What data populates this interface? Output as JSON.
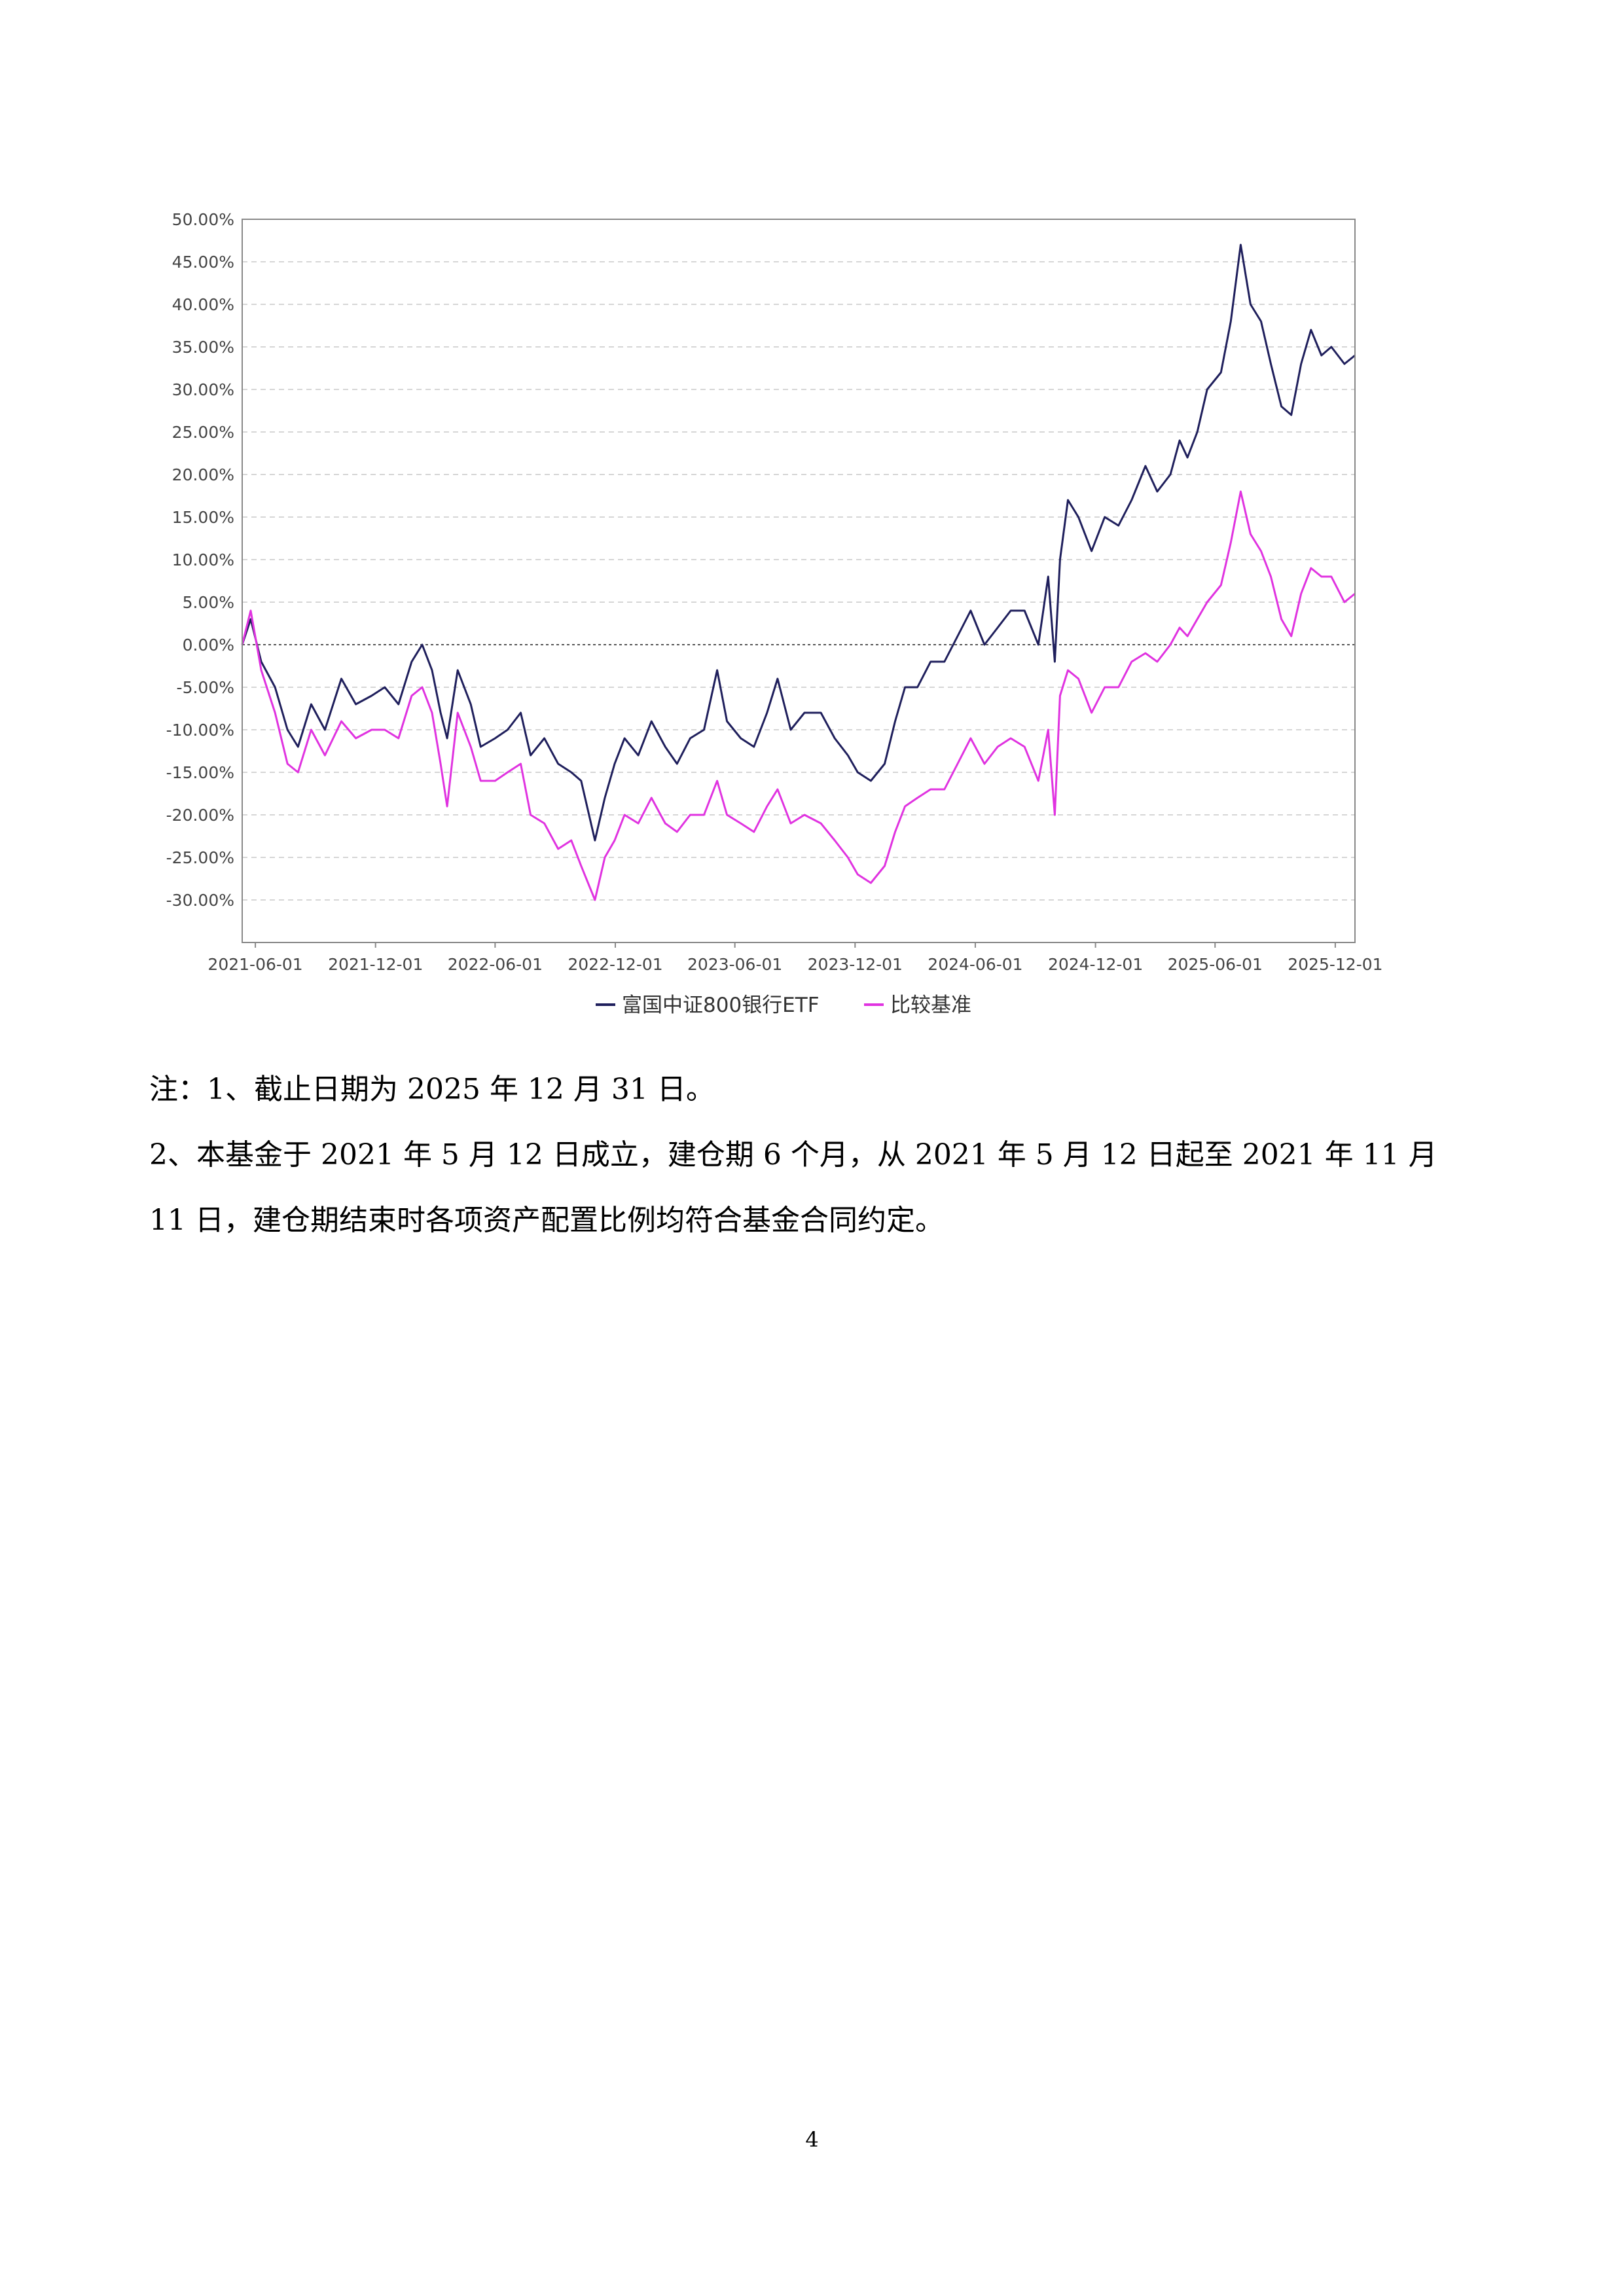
{
  "chart_data": {
    "type": "line",
    "x_ticks": [
      "2021-06-01",
      "2021-12-01",
      "2022-06-01",
      "2022-12-01",
      "2023-06-01",
      "2023-12-01",
      "2024-06-01",
      "2024-12-01",
      "2025-06-01",
      "2025-12-01"
    ],
    "y_ticks": [
      "50.00%",
      "45.00%",
      "40.00%",
      "35.00%",
      "30.00%",
      "25.00%",
      "20.00%",
      "15.00%",
      "10.00%",
      "5.00%",
      "0.00%",
      "-5.00%",
      "-10.00%",
      "-15.00%",
      "-20.00%",
      "-25.00%",
      "-30.00%"
    ],
    "ylim": [
      -35,
      50
    ],
    "xlim": [
      "2021-05-12",
      "2025-12-31"
    ],
    "y_unit": "%",
    "grid": "horizontal dashed",
    "legend_position": "bottom-center",
    "series": [
      {
        "name": "富国中证800银行ETF",
        "color": "#1f1f5c",
        "points": [
          [
            "2021-05-12",
            0
          ],
          [
            "2021-05-25",
            3
          ],
          [
            "2021-06-10",
            -2
          ],
          [
            "2021-07-01",
            -5
          ],
          [
            "2021-07-20",
            -10
          ],
          [
            "2021-08-05",
            -12
          ],
          [
            "2021-08-25",
            -7
          ],
          [
            "2021-09-15",
            -10
          ],
          [
            "2021-10-10",
            -4
          ],
          [
            "2021-11-01",
            -7
          ],
          [
            "2021-11-25",
            -6
          ],
          [
            "2021-12-15",
            -5
          ],
          [
            "2022-01-05",
            -7
          ],
          [
            "2022-01-25",
            -2
          ],
          [
            "2022-02-10",
            0
          ],
          [
            "2022-02-25",
            -3
          ],
          [
            "2022-03-10",
            -8
          ],
          [
            "2022-03-20",
            -11
          ],
          [
            "2022-04-05",
            -3
          ],
          [
            "2022-04-25",
            -7
          ],
          [
            "2022-05-10",
            -12
          ],
          [
            "2022-06-01",
            -11
          ],
          [
            "2022-06-20",
            -10
          ],
          [
            "2022-07-10",
            -8
          ],
          [
            "2022-07-25",
            -13
          ],
          [
            "2022-08-15",
            -11
          ],
          [
            "2022-09-05",
            -14
          ],
          [
            "2022-09-25",
            -15
          ],
          [
            "2022-10-10",
            -16
          ],
          [
            "2022-10-31",
            -23
          ],
          [
            "2022-11-15",
            -18
          ],
          [
            "2022-11-30",
            -14
          ],
          [
            "2022-12-15",
            -11
          ],
          [
            "2023-01-05",
            -13
          ],
          [
            "2023-01-25",
            -9
          ],
          [
            "2023-02-15",
            -12
          ],
          [
            "2023-03-05",
            -14
          ],
          [
            "2023-03-25",
            -11
          ],
          [
            "2023-04-15",
            -10
          ],
          [
            "2023-05-05",
            -3
          ],
          [
            "2023-05-20",
            -9
          ],
          [
            "2023-06-10",
            -11
          ],
          [
            "2023-06-30",
            -12
          ],
          [
            "2023-07-20",
            -8
          ],
          [
            "2023-08-05",
            -4
          ],
          [
            "2023-08-25",
            -10
          ],
          [
            "2023-09-15",
            -8
          ],
          [
            "2023-10-10",
            -8
          ],
          [
            "2023-10-31",
            -11
          ],
          [
            "2023-11-20",
            -13
          ],
          [
            "2023-12-05",
            -15
          ],
          [
            "2023-12-25",
            -16
          ],
          [
            "2024-01-15",
            -14
          ],
          [
            "2024-01-31",
            -9
          ],
          [
            "2024-02-15",
            -5
          ],
          [
            "2024-03-05",
            -5
          ],
          [
            "2024-03-25",
            -2
          ],
          [
            "2024-04-15",
            -2
          ],
          [
            "2024-05-05",
            1
          ],
          [
            "2024-05-25",
            4
          ],
          [
            "2024-06-15",
            0
          ],
          [
            "2024-07-05",
            2
          ],
          [
            "2024-07-25",
            4
          ],
          [
            "2024-08-15",
            4
          ],
          [
            "2024-09-05",
            0
          ],
          [
            "2024-09-20",
            8
          ],
          [
            "2024-09-30",
            -2
          ],
          [
            "2024-10-08",
            10
          ],
          [
            "2024-10-20",
            17
          ],
          [
            "2024-11-05",
            15
          ],
          [
            "2024-11-25",
            11
          ],
          [
            "2024-12-15",
            15
          ],
          [
            "2025-01-05",
            14
          ],
          [
            "2025-01-25",
            17
          ],
          [
            "2025-02-15",
            21
          ],
          [
            "2025-03-05",
            18
          ],
          [
            "2025-03-25",
            20
          ],
          [
            "2025-04-08",
            24
          ],
          [
            "2025-04-20",
            22
          ],
          [
            "2025-05-05",
            25
          ],
          [
            "2025-05-20",
            30
          ],
          [
            "2025-06-10",
            32
          ],
          [
            "2025-06-25",
            38
          ],
          [
            "2025-07-10",
            47
          ],
          [
            "2025-07-25",
            40
          ],
          [
            "2025-08-10",
            38
          ],
          [
            "2025-08-25",
            33
          ],
          [
            "2025-09-10",
            28
          ],
          [
            "2025-09-25",
            27
          ],
          [
            "2025-10-10",
            33
          ],
          [
            "2025-10-25",
            37
          ],
          [
            "2025-11-10",
            34
          ],
          [
            "2025-11-25",
            35
          ],
          [
            "2025-12-15",
            33
          ],
          [
            "2025-12-31",
            34
          ]
        ]
      },
      {
        "name": "比较基准",
        "color": "#e033e0",
        "points": [
          [
            "2021-05-12",
            0
          ],
          [
            "2021-05-25",
            4
          ],
          [
            "2021-06-10",
            -3
          ],
          [
            "2021-07-01",
            -8
          ],
          [
            "2021-07-20",
            -14
          ],
          [
            "2021-08-05",
            -15
          ],
          [
            "2021-08-25",
            -10
          ],
          [
            "2021-09-15",
            -13
          ],
          [
            "2021-10-10",
            -9
          ],
          [
            "2021-11-01",
            -11
          ],
          [
            "2021-11-25",
            -10
          ],
          [
            "2021-12-15",
            -10
          ],
          [
            "2022-01-05",
            -11
          ],
          [
            "2022-01-25",
            -6
          ],
          [
            "2022-02-10",
            -5
          ],
          [
            "2022-02-25",
            -8
          ],
          [
            "2022-03-10",
            -14
          ],
          [
            "2022-03-20",
            -19
          ],
          [
            "2022-04-05",
            -8
          ],
          [
            "2022-04-25",
            -12
          ],
          [
            "2022-05-10",
            -16
          ],
          [
            "2022-06-01",
            -16
          ],
          [
            "2022-06-20",
            -15
          ],
          [
            "2022-07-10",
            -14
          ],
          [
            "2022-07-25",
            -20
          ],
          [
            "2022-08-15",
            -21
          ],
          [
            "2022-09-05",
            -24
          ],
          [
            "2022-09-25",
            -23
          ],
          [
            "2022-10-10",
            -26
          ],
          [
            "2022-10-31",
            -30
          ],
          [
            "2022-11-15",
            -25
          ],
          [
            "2022-11-30",
            -23
          ],
          [
            "2022-12-15",
            -20
          ],
          [
            "2023-01-05",
            -21
          ],
          [
            "2023-01-25",
            -18
          ],
          [
            "2023-02-15",
            -21
          ],
          [
            "2023-03-05",
            -22
          ],
          [
            "2023-03-25",
            -20
          ],
          [
            "2023-04-15",
            -20
          ],
          [
            "2023-05-05",
            -16
          ],
          [
            "2023-05-20",
            -20
          ],
          [
            "2023-06-10",
            -21
          ],
          [
            "2023-06-30",
            -22
          ],
          [
            "2023-07-20",
            -19
          ],
          [
            "2023-08-05",
            -17
          ],
          [
            "2023-08-25",
            -21
          ],
          [
            "2023-09-15",
            -20
          ],
          [
            "2023-10-10",
            -21
          ],
          [
            "2023-10-31",
            -23
          ],
          [
            "2023-11-20",
            -25
          ],
          [
            "2023-12-05",
            -27
          ],
          [
            "2023-12-25",
            -28
          ],
          [
            "2024-01-15",
            -26
          ],
          [
            "2024-01-31",
            -22
          ],
          [
            "2024-02-15",
            -19
          ],
          [
            "2024-03-05",
            -18
          ],
          [
            "2024-03-25",
            -17
          ],
          [
            "2024-04-15",
            -17
          ],
          [
            "2024-05-05",
            -14
          ],
          [
            "2024-05-25",
            -11
          ],
          [
            "2024-06-15",
            -14
          ],
          [
            "2024-07-05",
            -12
          ],
          [
            "2024-07-25",
            -11
          ],
          [
            "2024-08-15",
            -12
          ],
          [
            "2024-09-05",
            -16
          ],
          [
            "2024-09-20",
            -10
          ],
          [
            "2024-09-30",
            -20
          ],
          [
            "2024-10-08",
            -6
          ],
          [
            "2024-10-20",
            -3
          ],
          [
            "2024-11-05",
            -4
          ],
          [
            "2024-11-25",
            -8
          ],
          [
            "2024-12-15",
            -5
          ],
          [
            "2025-01-05",
            -5
          ],
          [
            "2025-01-25",
            -2
          ],
          [
            "2025-02-15",
            -1
          ],
          [
            "2025-03-05",
            -2
          ],
          [
            "2025-03-25",
            0
          ],
          [
            "2025-04-08",
            2
          ],
          [
            "2025-04-20",
            1
          ],
          [
            "2025-05-05",
            3
          ],
          [
            "2025-05-20",
            5
          ],
          [
            "2025-06-10",
            7
          ],
          [
            "2025-06-25",
            12
          ],
          [
            "2025-07-10",
            18
          ],
          [
            "2025-07-25",
            13
          ],
          [
            "2025-08-10",
            11
          ],
          [
            "2025-08-25",
            8
          ],
          [
            "2025-09-10",
            3
          ],
          [
            "2025-09-25",
            1
          ],
          [
            "2025-10-10",
            6
          ],
          [
            "2025-10-25",
            9
          ],
          [
            "2025-11-10",
            8
          ],
          [
            "2025-11-25",
            8
          ],
          [
            "2025-12-15",
            5
          ],
          [
            "2025-12-31",
            6
          ]
        ]
      }
    ]
  },
  "notes": [
    "注：1、截止日期为 2025 年 12 月 31 日。",
    "2、本基金于 2021 年 5 月 12 日成立，建仓期 6 个月，从 2021 年 5 月 12 日起至 2021 年 11 月",
    "11 日，建仓期结束时各项资产配置比例均符合基金合同约定。"
  ],
  "page_number": "4"
}
